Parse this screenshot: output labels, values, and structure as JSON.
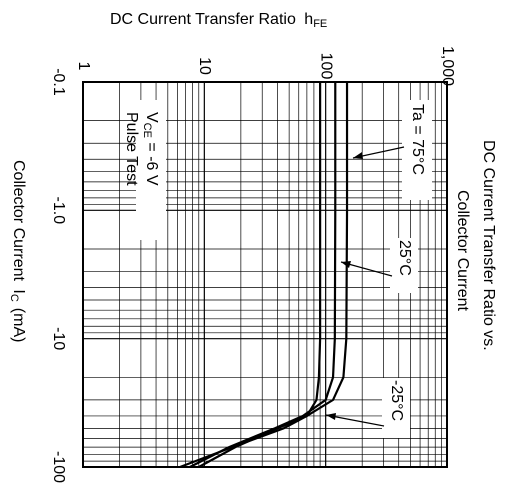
{
  "chart_data": {
    "type": "line",
    "title": "DC Current Transfer Ratio vs.",
    "subtitle": "Collector Current",
    "y_label": "DC Current Transfer Ratio",
    "y_label_symbol": "h",
    "y_label_sub": "FE",
    "x_label": "Collector Current",
    "x_label_symbol": "I",
    "x_label_sub": "C",
    "x_label_unit": "(mA)",
    "annotations": [
      "V",
      "CE",
      " = -6 V",
      "Pulse Test"
    ],
    "log_x": true,
    "log_y": true,
    "grid": true,
    "x": [
      -0.1,
      -1,
      -10,
      -20,
      -30,
      -40,
      -50,
      -70,
      -100
    ],
    "series": [
      {
        "name": "Ta = 75°C",
        "color": "#000000",
        "values": [
          150,
          150,
          148,
          140,
          115,
          70,
          40,
          18,
          9
        ]
      },
      {
        "name": "25°C",
        "color": "#000000",
        "values": [
          120,
          120,
          119,
          115,
          100,
          65,
          38,
          16,
          7.6
        ]
      },
      {
        "name": "-25°C",
        "color": "#000000",
        "values": [
          90,
          90,
          90,
          88,
          84,
          70,
          45,
          17,
          6.3
        ]
      }
    ],
    "xlim": [
      -0.1,
      -100
    ],
    "xticks": [
      -0.1,
      {
        "value": -1,
        "label": "-1.0"
      },
      -10,
      -100
    ],
    "ylim": [
      1,
      1000
    ],
    "yticks": [
      1,
      10,
      100,
      {
        "value": 1000,
        "label": "1,000"
      }
    ]
  }
}
